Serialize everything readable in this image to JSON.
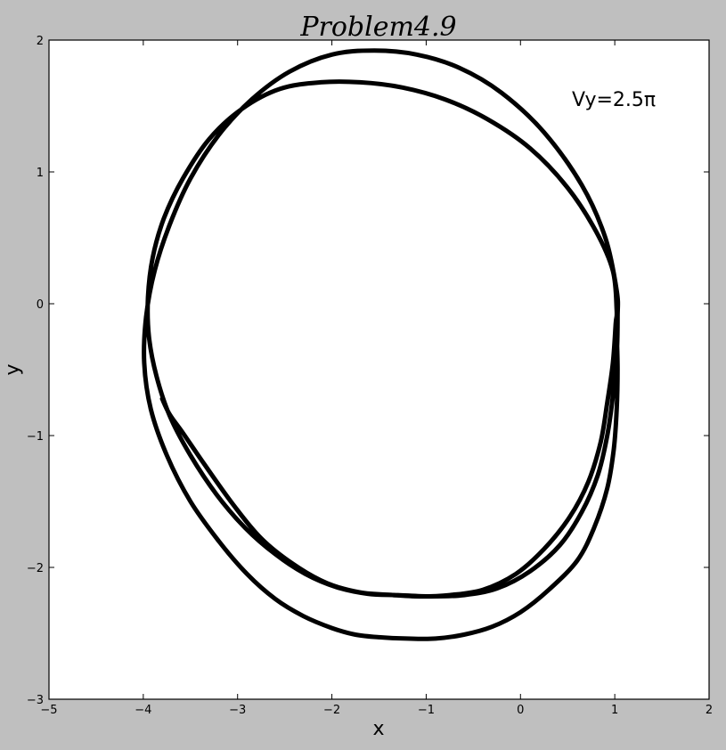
{
  "chart_data": {
    "type": "line",
    "title": "Problem4.9",
    "xlabel": "x",
    "ylabel": "y",
    "xlim": [
      -5,
      2
    ],
    "ylim": [
      -3,
      2
    ],
    "xticks": [
      -5,
      -4,
      -3,
      -2,
      -1,
      0,
      1,
      2
    ],
    "yticks": [
      -3,
      -2,
      -1,
      0,
      1,
      2
    ],
    "xtick_labels": [
      "−5",
      "−4",
      "−3",
      "−2",
      "−1",
      "0",
      "1",
      "2"
    ],
    "ytick_labels": [
      "−3",
      "−2",
      "−1",
      "0",
      "1",
      "2"
    ],
    "grid": false,
    "annotation": "Vy=2.5π",
    "line_color": "#000000",
    "plot_background": "#ffffff",
    "figure_background": "#bfbfbf",
    "series": [
      {
        "x": [
          1.02,
          1.03,
          1.02,
          0.99,
          0.92,
          0.78,
          0.6,
          0.3,
          0.0,
          -0.3,
          -0.6,
          -0.9,
          -1.2,
          -1.5,
          -1.75,
          -2.0,
          -2.3,
          -2.6,
          -2.9,
          -3.2,
          -3.5,
          -3.75,
          -3.92,
          -3.99,
          -3.97,
          -3.88,
          -3.72,
          -3.5,
          -3.2,
          -2.85,
          -2.45,
          -2.0,
          -1.55,
          -1.1,
          -0.65,
          -0.2,
          0.25,
          0.65,
          0.9,
          1.02,
          1.03,
          1.02,
          0.98,
          0.92,
          0.82,
          0.65,
          0.42,
          0.1,
          -0.25,
          -0.6,
          -0.95,
          -1.3,
          -1.62,
          -1.95,
          -2.28,
          -2.6,
          -2.92,
          -3.22,
          -3.5,
          -3.72,
          -3.86,
          -3.94,
          -3.95,
          -3.9,
          -3.78,
          -3.58,
          -3.3,
          -2.95,
          -2.55,
          -2.12,
          -1.7,
          -1.25,
          -0.8,
          -0.35,
          0.1,
          0.5,
          0.8,
          0.98,
          1.02,
          1.01,
          0.98,
          0.92,
          0.85,
          0.72,
          0.52,
          0.25,
          -0.05,
          -0.4,
          -0.75,
          -1.05,
          -1.35,
          -1.7,
          -2.05,
          -2.4,
          -2.75,
          -3.05,
          -3.35,
          -3.58,
          -3.72,
          -3.8
        ],
        "y": [
          -0.2,
          -0.5,
          -0.8,
          -1.1,
          -1.4,
          -1.7,
          -1.95,
          -2.17,
          -2.34,
          -2.45,
          -2.51,
          -2.54,
          -2.54,
          -2.53,
          -2.51,
          -2.46,
          -2.37,
          -2.24,
          -2.05,
          -1.8,
          -1.5,
          -1.15,
          -0.8,
          -0.45,
          -0.1,
          0.25,
          0.6,
          0.95,
          1.28,
          1.55,
          1.76,
          1.89,
          1.92,
          1.89,
          1.79,
          1.6,
          1.3,
          0.9,
          0.5,
          0.1,
          -0.1,
          -0.4,
          -0.7,
          -1.0,
          -1.3,
          -1.58,
          -1.83,
          -2.03,
          -2.16,
          -2.21,
          -2.22,
          -2.21,
          -2.2,
          -2.15,
          -2.05,
          -1.9,
          -1.7,
          -1.45,
          -1.15,
          -0.85,
          -0.55,
          -0.25,
          0.05,
          0.35,
          0.65,
          0.95,
          1.25,
          1.48,
          1.63,
          1.68,
          1.68,
          1.64,
          1.55,
          1.4,
          1.18,
          0.88,
          0.55,
          0.25,
          -0.05,
          -0.15,
          -0.45,
          -0.75,
          -1.05,
          -1.35,
          -1.62,
          -1.86,
          -2.05,
          -2.17,
          -2.21,
          -2.22,
          -2.21,
          -2.19,
          -2.12,
          -1.98,
          -1.78,
          -1.52,
          -1.22,
          -0.98,
          -0.84,
          -0.72
        ]
      }
    ]
  }
}
